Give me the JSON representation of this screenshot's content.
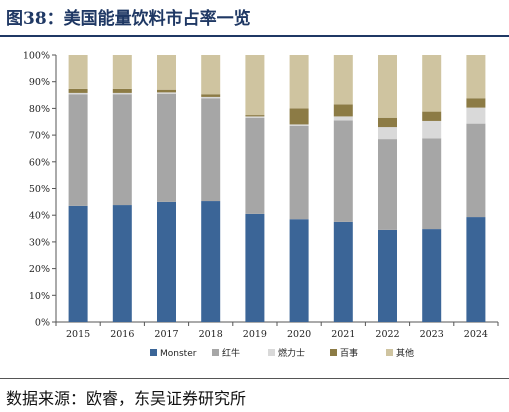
{
  "figure": {
    "title": "图38：美国能量饮料市占率一览",
    "source": "数据来源：欧睿，东吴证券研究所"
  },
  "chart_data": {
    "type": "bar",
    "stacked": true,
    "percent": true,
    "categories": [
      "2015",
      "2016",
      "2017",
      "2018",
      "2019",
      "2020",
      "2021",
      "2022",
      "2023",
      "2024"
    ],
    "y_ticks": [
      "0%",
      "10%",
      "20%",
      "30%",
      "40%",
      "50%",
      "60%",
      "70%",
      "80%",
      "90%",
      "100%"
    ],
    "ylim": [
      0,
      100
    ],
    "grid": false,
    "legend_position": "bottom",
    "series": [
      {
        "name": "Monster",
        "color": "#3b6597",
        "values": [
          43.5,
          43.8,
          45.0,
          45.3,
          40.5,
          38.5,
          37.5,
          34.5,
          34.8,
          39.3
        ]
      },
      {
        "name": "红牛",
        "color": "#a6a6a6",
        "values": [
          41.8,
          41.5,
          40.5,
          38.5,
          36.0,
          35.0,
          38.0,
          34.0,
          34.0,
          35.0
        ]
      },
      {
        "name": "燃力士",
        "color": "#d9d9d9",
        "values": [
          0.5,
          0.5,
          0.5,
          0.5,
          0.5,
          0.5,
          1.5,
          4.5,
          6.5,
          6.0
        ]
      },
      {
        "name": "百事",
        "color": "#8c7b45",
        "values": [
          1.5,
          1.5,
          1.0,
          1.0,
          0.5,
          6.0,
          4.5,
          3.5,
          3.5,
          3.5
        ]
      },
      {
        "name": "其他",
        "color": "#cfc4a0",
        "values": [
          12.7,
          12.7,
          13.0,
          14.7,
          22.5,
          20.0,
          18.5,
          23.5,
          21.2,
          16.2
        ]
      }
    ]
  }
}
